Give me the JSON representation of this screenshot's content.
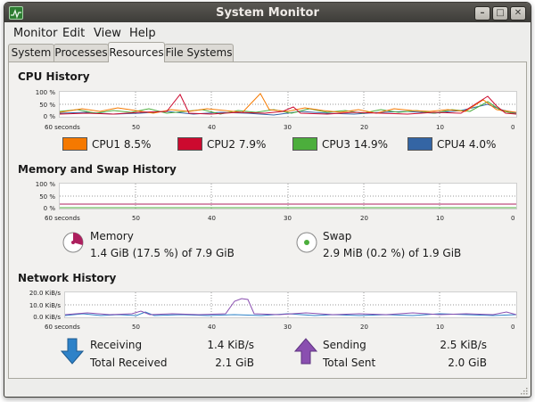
{
  "window": {
    "title": "System Monitor"
  },
  "menu": [
    "Monitor",
    "Edit",
    "View",
    "Help"
  ],
  "tabs": [
    "System",
    "Processes",
    "Resources",
    "File Systems"
  ],
  "active_tab": "Resources",
  "cpu": {
    "title": "CPU History",
    "y_ticks": [
      "100 %",
      "50 %",
      "0 %"
    ],
    "x_ticks": [
      "60 seconds",
      "50",
      "40",
      "30",
      "20",
      "10",
      "0"
    ],
    "legend": [
      {
        "label": "CPU1",
        "value": "8.5%",
        "color": "#f57900"
      },
      {
        "label": "CPU2",
        "value": "7.9%",
        "color": "#cc0a2f"
      },
      {
        "label": "CPU3",
        "value": "14.9%",
        "color": "#4cae3c"
      },
      {
        "label": "CPU4",
        "value": "4.0%",
        "color": "#3465a4"
      }
    ]
  },
  "memory": {
    "title": "Memory and Swap History",
    "y_ticks": [
      "100 %",
      "50 %",
      "0 %"
    ],
    "x_ticks": [
      "60 seconds",
      "50",
      "40",
      "30",
      "20",
      "10",
      "0"
    ],
    "memory_label": "Memory",
    "memory_value": "1.4 GiB (17.5 %) of 7.9 GiB",
    "memory_color": "#ad1f5e",
    "swap_label": "Swap",
    "swap_value": "2.9 MiB (0.2 %) of 1.9 GiB",
    "swap_color": "#4cae3c"
  },
  "network": {
    "title": "Network History",
    "y_ticks": [
      "20.0 KiB/s",
      "10.0 KiB/s",
      "0.0 KiB/s"
    ],
    "x_ticks": [
      "60 seconds",
      "50",
      "40",
      "30",
      "20",
      "10",
      "0"
    ],
    "receiving_label": "Receiving",
    "receiving_value": "1.4 KiB/s",
    "total_received_label": "Total Received",
    "total_received_value": "2.1 GiB",
    "sending_label": "Sending",
    "sending_value": "2.5 KiB/s",
    "total_sent_label": "Total Sent",
    "total_sent_value": "2.0 GiB",
    "receiving_color": "#2e82c8",
    "sending_color": "#8a4fb0"
  }
}
